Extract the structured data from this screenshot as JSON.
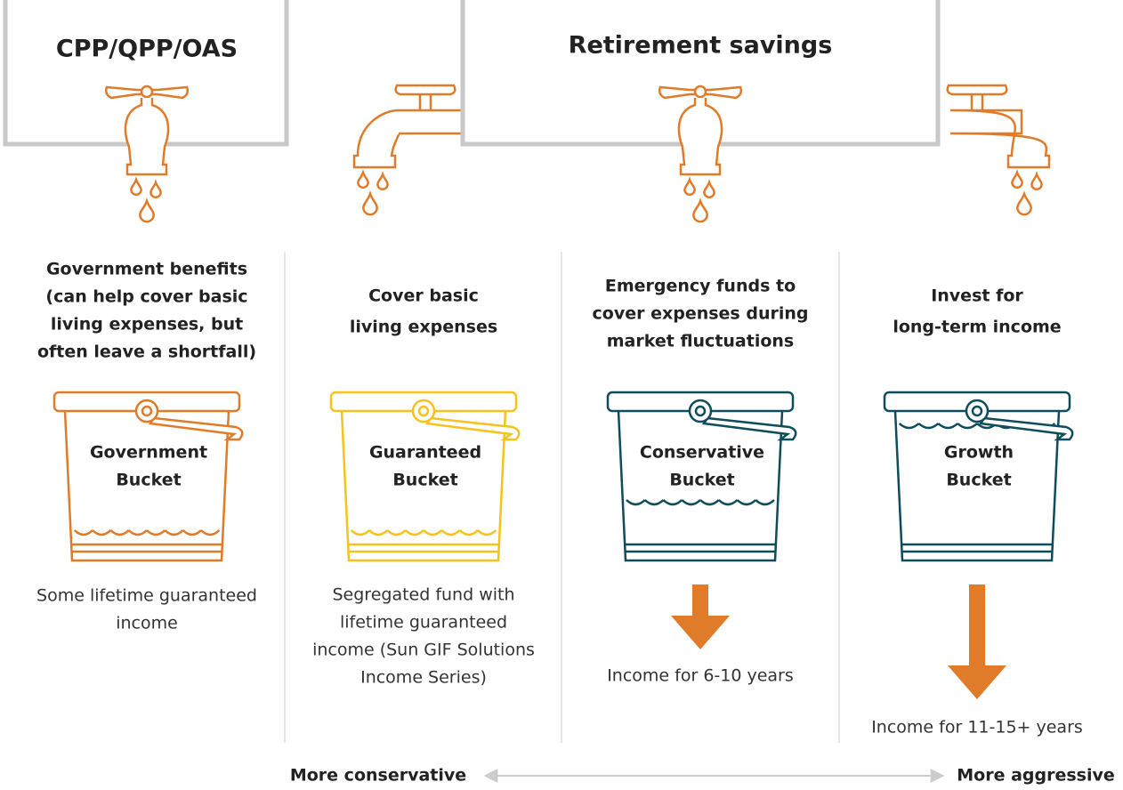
{
  "sources": [
    {
      "label": "CPP/QPP/OAS"
    },
    {
      "label": "Retirement savings"
    }
  ],
  "columns": [
    {
      "heading": [
        "Government benefits",
        "(can help cover basic",
        "living expenses, but",
        "often leave a shortfall)"
      ],
      "bucket": [
        "Government",
        "Bucket"
      ],
      "description": [
        "Some lifetime guaranteed",
        "income"
      ]
    },
    {
      "heading": [
        "Cover basic",
        "living expenses"
      ],
      "bucket": [
        "Guaranteed",
        "Bucket"
      ],
      "description": [
        "Segregated fund with",
        "lifetime guaranteed",
        "income (Sun GIF Solutions",
        "Income Series)"
      ]
    },
    {
      "heading": [
        "Emergency funds to",
        "cover expenses during",
        "market fluctuations"
      ],
      "bucket": [
        "Conservative",
        "Bucket"
      ],
      "description": [
        "Income for 6-10 years"
      ]
    },
    {
      "heading": [
        "Invest for",
        "long-term income"
      ],
      "bucket": [
        "Growth",
        "Bucket"
      ],
      "description": [
        "Income for 11-15+ years"
      ]
    }
  ],
  "scale": {
    "left": "More conservative",
    "right": "More aggressive"
  }
}
